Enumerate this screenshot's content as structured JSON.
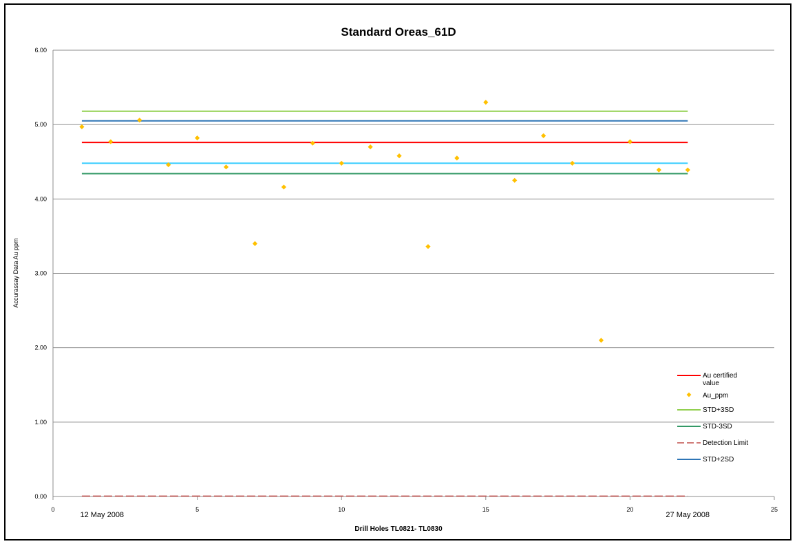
{
  "chart_data": {
    "type": "scatter",
    "title": "Standard  Oreas_61D",
    "xlabel": "Drill Holes TL0821- TL0830",
    "ylabel": "Accurassay Data Au ppm",
    "xlim": [
      0,
      25
    ],
    "ylim": [
      0,
      6
    ],
    "x_ticks": [
      0,
      5,
      10,
      15,
      20,
      25
    ],
    "x_tick_labels": [
      "0",
      "5",
      "10",
      "15",
      "20",
      "25"
    ],
    "y_ticks": [
      0,
      1,
      2,
      3,
      4,
      5,
      6
    ],
    "y_tick_labels": [
      "0.00",
      "1.00",
      "2.00",
      "3.00",
      "4.00",
      "5.00",
      "6.00"
    ],
    "grid": "horizontal",
    "legend_position": "bottom-right",
    "annotations": [
      {
        "text": "12  May 2008",
        "x": 1.7
      },
      {
        "text": "27 May 2008",
        "x": 22.0
      }
    ],
    "points": {
      "name": "Au_ppm",
      "color": "#ffc000",
      "x": [
        1,
        2,
        3,
        4,
        5,
        6,
        7,
        8,
        9,
        10,
        11,
        12,
        13,
        14,
        15,
        16,
        17,
        18,
        19,
        20,
        21,
        22
      ],
      "y": [
        4.97,
        4.77,
        5.06,
        4.46,
        4.82,
        4.43,
        3.4,
        4.16,
        4.75,
        4.48,
        4.7,
        4.58,
        3.36,
        4.55,
        5.3,
        4.25,
        4.85,
        4.48,
        2.1,
        4.77,
        4.39,
        4.39
      ]
    },
    "lines": [
      {
        "name": "Au certified value",
        "value": 4.76,
        "color": "#ff0000",
        "dash": "solid"
      },
      {
        "name": "STD+3SD",
        "value": 5.18,
        "color": "#92d050",
        "dash": "solid"
      },
      {
        "name": "STD-3SD",
        "value": 4.34,
        "color": "#339966",
        "dash": "solid"
      },
      {
        "name": "Detection Limit",
        "value": 0.005,
        "color": "#c0504d",
        "dash": "dashed"
      },
      {
        "name": "STD+2SD",
        "value": 5.05,
        "color": "#2e75b6",
        "dash": "solid"
      },
      {
        "value": 4.48,
        "color": "#33ccff",
        "dash": "solid"
      }
    ],
    "line_x_range": [
      1,
      22
    ],
    "legend": [
      {
        "label": "Au certified value",
        "kind": "line",
        "color": "#ff0000"
      },
      {
        "label": "Au_ppm",
        "kind": "marker",
        "color": "#ffc000"
      },
      {
        "label": "STD+3SD",
        "kind": "line",
        "color": "#92d050"
      },
      {
        "label": "STD-3SD",
        "kind": "line",
        "color": "#339966"
      },
      {
        "label": "Detection Limit",
        "kind": "dashed",
        "color": "#c0504d"
      },
      {
        "label": "STD+2SD",
        "kind": "line",
        "color": "#2e75b6"
      }
    ]
  }
}
